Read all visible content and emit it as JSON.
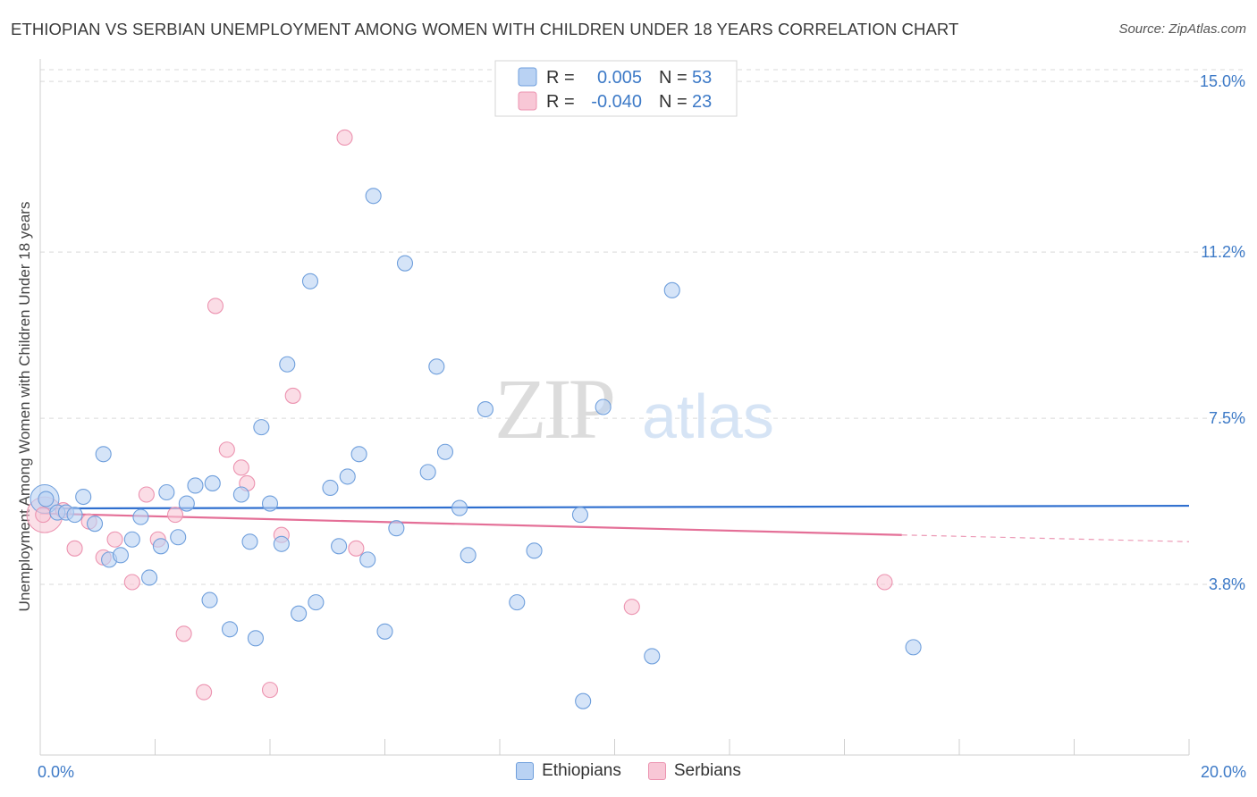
{
  "title": "ETHIOPIAN VS SERBIAN UNEMPLOYMENT AMONG WOMEN WITH CHILDREN UNDER 18 YEARS CORRELATION CHART",
  "source": "Source: ZipAtlas.com",
  "watermark": {
    "zip": "ZIP",
    "atlas": "atlas"
  },
  "stats_legend": {
    "rows": [
      {
        "r_label": "R =",
        "r_value": "0.005",
        "n_label": "N =",
        "n_value": "53"
      },
      {
        "r_label": "R =",
        "r_value": "-0.040",
        "n_label": "N =",
        "n_value": "23"
      }
    ]
  },
  "colors": {
    "ethiopians_fill": "#b9d2f3",
    "ethiopians_stroke": "#6f9fdc",
    "ethiopians_line": "#2f6fcf",
    "serbians_fill": "#f8c7d6",
    "serbians_stroke": "#ec93b0",
    "serbians_line": "#e46f97",
    "value_text": "#3d7ac7"
  },
  "chart_data": {
    "type": "scatter",
    "xlabel": "",
    "ylabel": "Unemployment Among Women with Children Under 18 years",
    "xlim": [
      0,
      20
    ],
    "ylim": [
      0,
      15.5
    ],
    "x_tick_labels": [
      {
        "value": 0,
        "label": "0.0%"
      },
      {
        "value": 20,
        "label": "20.0%"
      }
    ],
    "y_tick_labels": [
      {
        "value": 3.8,
        "label": "3.8%"
      },
      {
        "value": 7.5,
        "label": "7.5%"
      },
      {
        "value": 11.2,
        "label": "11.2%"
      },
      {
        "value": 15.0,
        "label": "15.0%"
      }
    ],
    "grid": "horizontal-dashed",
    "legend": "bottom-center",
    "series": [
      {
        "name": "Ethiopians",
        "points": [
          [
            0.1,
            5.7
          ],
          [
            0.3,
            5.4
          ],
          [
            0.45,
            5.4
          ],
          [
            0.6,
            5.35
          ],
          [
            0.75,
            5.75
          ],
          [
            0.95,
            5.15
          ],
          [
            1.1,
            6.7
          ],
          [
            1.2,
            4.35
          ],
          [
            1.4,
            4.45
          ],
          [
            1.6,
            4.8
          ],
          [
            1.75,
            5.3
          ],
          [
            1.9,
            3.95
          ],
          [
            2.1,
            4.65
          ],
          [
            2.2,
            5.85
          ],
          [
            2.4,
            4.85
          ],
          [
            2.55,
            5.6
          ],
          [
            2.7,
            6.0
          ],
          [
            2.95,
            3.45
          ],
          [
            3.0,
            6.05
          ],
          [
            3.3,
            2.8
          ],
          [
            3.5,
            5.8
          ],
          [
            3.65,
            4.75
          ],
          [
            3.75,
            2.6
          ],
          [
            3.85,
            7.3
          ],
          [
            4.0,
            5.6
          ],
          [
            4.2,
            4.7
          ],
          [
            4.3,
            8.7
          ],
          [
            4.5,
            3.15
          ],
          [
            4.7,
            10.55
          ],
          [
            4.8,
            3.4
          ],
          [
            5.05,
            5.95
          ],
          [
            5.2,
            4.65
          ],
          [
            5.35,
            6.2
          ],
          [
            5.55,
            6.7
          ],
          [
            5.7,
            4.35
          ],
          [
            5.8,
            12.45
          ],
          [
            6.0,
            2.75
          ],
          [
            6.2,
            5.05
          ],
          [
            6.35,
            10.95
          ],
          [
            6.75,
            6.3
          ],
          [
            6.9,
            8.65
          ],
          [
            7.05,
            6.75
          ],
          [
            7.3,
            5.5
          ],
          [
            7.45,
            4.45
          ],
          [
            7.75,
            7.7
          ],
          [
            8.3,
            3.4
          ],
          [
            8.6,
            4.55
          ],
          [
            9.4,
            5.35
          ],
          [
            9.45,
            1.2
          ],
          [
            9.8,
            7.75
          ],
          [
            10.65,
            2.2
          ],
          [
            11.0,
            10.35
          ],
          [
            15.2,
            2.4
          ]
        ],
        "trend": {
          "x": [
            0,
            20
          ],
          "y": [
            5.49,
            5.55
          ]
        }
      },
      {
        "name": "Serbians",
        "points": [
          [
            0.05,
            5.35
          ],
          [
            0.4,
            5.45
          ],
          [
            0.6,
            4.6
          ],
          [
            0.85,
            5.2
          ],
          [
            1.1,
            4.4
          ],
          [
            1.3,
            4.8
          ],
          [
            1.6,
            3.85
          ],
          [
            1.85,
            5.8
          ],
          [
            2.05,
            4.8
          ],
          [
            2.35,
            5.35
          ],
          [
            2.5,
            2.7
          ],
          [
            2.85,
            1.4
          ],
          [
            3.05,
            10.0
          ],
          [
            3.25,
            6.8
          ],
          [
            3.5,
            6.4
          ],
          [
            3.6,
            6.05
          ],
          [
            4.0,
            1.45
          ],
          [
            4.2,
            4.9
          ],
          [
            4.4,
            8.0
          ],
          [
            5.3,
            13.75
          ],
          [
            5.5,
            4.6
          ],
          [
            10.3,
            3.3
          ],
          [
            14.7,
            3.85
          ]
        ],
        "trend": {
          "x": [
            0,
            15.0
          ],
          "y": [
            5.38,
            4.9
          ]
        },
        "trend_dashed": {
          "x": [
            15.0,
            20
          ],
          "y": [
            4.9,
            4.75
          ]
        }
      }
    ]
  }
}
